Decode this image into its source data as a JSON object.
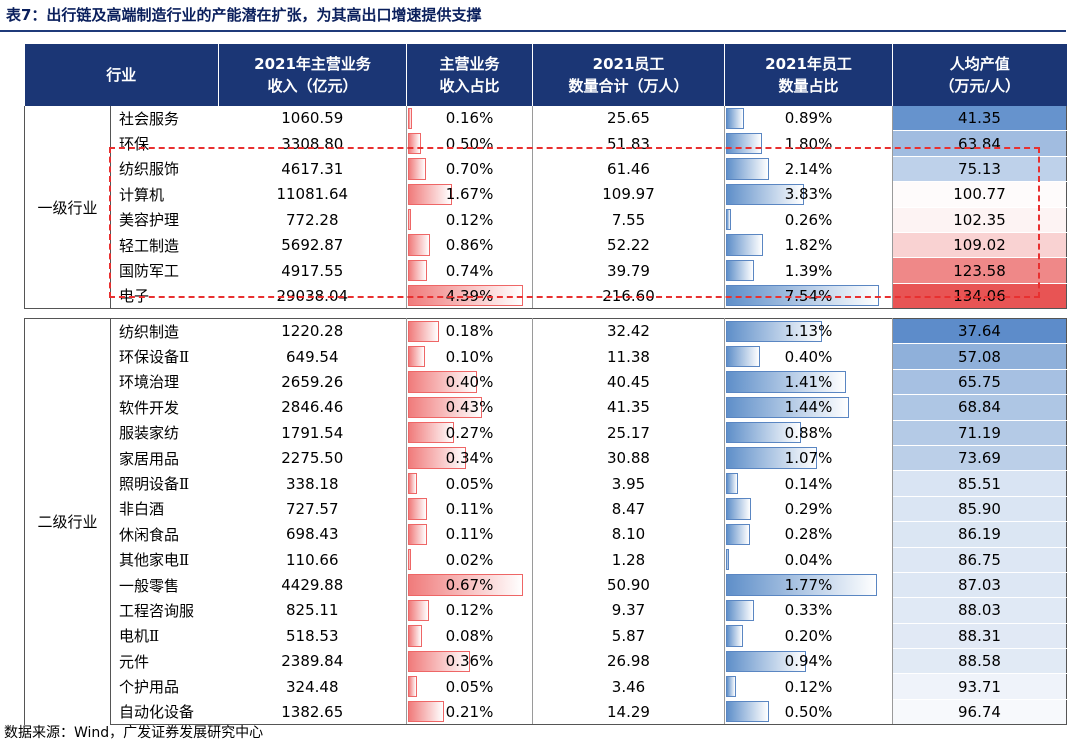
{
  "title": "表7：出行链及高端制造行业的产能潜在扩张，为其高出口增速提供支撑",
  "headers": {
    "industry": "行业",
    "revenue_1": "2021年主营业务",
    "revenue_2": "收入（亿元）",
    "revshare_1": "主营业务",
    "revshare_2": "收入占比",
    "emp_1": "2021员工",
    "emp_2": "数量合计（万人）",
    "empshare_1": "2021年员工",
    "empshare_2": "数量占比",
    "ppv_1": "人均产值",
    "ppv_2": "（万元/人）"
  },
  "colors": {
    "header": "#1b3675",
    "title": "#0a1f5c",
    "highlight": "#e83030"
  },
  "groups": [
    {
      "label": "一级行业",
      "rows": [
        {
          "name": "社会服务",
          "revenue": "1060.59",
          "rev_share": "0.16%",
          "rev_pct": 0.16,
          "employees": "25.65",
          "emp_share": "0.89%",
          "emp_pct": 0.89,
          "per_capita": "41.35",
          "pc": 41.35
        },
        {
          "name": "环保",
          "revenue": "3308.80",
          "rev_share": "0.50%",
          "rev_pct": 0.5,
          "employees": "51.83",
          "emp_share": "1.80%",
          "emp_pct": 1.8,
          "per_capita": "63.84",
          "pc": 63.84
        },
        {
          "name": "纺织服饰",
          "revenue": "4617.31",
          "rev_share": "0.70%",
          "rev_pct": 0.7,
          "employees": "61.46",
          "emp_share": "2.14%",
          "emp_pct": 2.14,
          "per_capita": "75.13",
          "pc": 75.13
        },
        {
          "name": "计算机",
          "revenue": "11081.64",
          "rev_share": "1.67%",
          "rev_pct": 1.67,
          "employees": "109.97",
          "emp_share": "3.83%",
          "emp_pct": 3.83,
          "per_capita": "100.77",
          "pc": 100.77
        },
        {
          "name": "美容护理",
          "revenue": "772.28",
          "rev_share": "0.12%",
          "rev_pct": 0.12,
          "employees": "7.55",
          "emp_share": "0.26%",
          "emp_pct": 0.26,
          "per_capita": "102.35",
          "pc": 102.35
        },
        {
          "name": "轻工制造",
          "revenue": "5692.87",
          "rev_share": "0.86%",
          "rev_pct": 0.86,
          "employees": "52.22",
          "emp_share": "1.82%",
          "emp_pct": 1.82,
          "per_capita": "109.02",
          "pc": 109.02
        },
        {
          "name": "国防军工",
          "revenue": "4917.55",
          "rev_share": "0.74%",
          "rev_pct": 0.74,
          "employees": "39.79",
          "emp_share": "1.39%",
          "emp_pct": 1.39,
          "per_capita": "123.58",
          "pc": 123.58
        },
        {
          "name": "电子",
          "revenue": "29038.04",
          "rev_share": "4.39%",
          "rev_pct": 4.39,
          "employees": "216.60",
          "emp_share": "7.54%",
          "emp_pct": 7.54,
          "per_capita": "134.06",
          "pc": 134.06
        }
      ]
    },
    {
      "label": "二级行业",
      "rows": [
        {
          "name": "纺织制造",
          "revenue": "1220.28",
          "rev_share": "0.18%",
          "rev_pct": 0.18,
          "employees": "32.42",
          "emp_share": "1.13%",
          "emp_pct": 1.13,
          "per_capita": "37.64",
          "pc": 37.64
        },
        {
          "name": "环保设备Ⅱ",
          "revenue": "649.54",
          "rev_share": "0.10%",
          "rev_pct": 0.1,
          "employees": "11.38",
          "emp_share": "0.40%",
          "emp_pct": 0.4,
          "per_capita": "57.08",
          "pc": 57.08
        },
        {
          "name": "环境治理",
          "revenue": "2659.26",
          "rev_share": "0.40%",
          "rev_pct": 0.4,
          "employees": "40.45",
          "emp_share": "1.41%",
          "emp_pct": 1.41,
          "per_capita": "65.75",
          "pc": 65.75
        },
        {
          "name": "软件开发",
          "revenue": "2846.46",
          "rev_share": "0.43%",
          "rev_pct": 0.43,
          "employees": "41.35",
          "emp_share": "1.44%",
          "emp_pct": 1.44,
          "per_capita": "68.84",
          "pc": 68.84
        },
        {
          "name": "服装家纺",
          "revenue": "1791.54",
          "rev_share": "0.27%",
          "rev_pct": 0.27,
          "employees": "25.17",
          "emp_share": "0.88%",
          "emp_pct": 0.88,
          "per_capita": "71.19",
          "pc": 71.19
        },
        {
          "name": "家居用品",
          "revenue": "2275.50",
          "rev_share": "0.34%",
          "rev_pct": 0.34,
          "employees": "30.88",
          "emp_share": "1.07%",
          "emp_pct": 1.07,
          "per_capita": "73.69",
          "pc": 73.69
        },
        {
          "name": "照明设备Ⅱ",
          "revenue": "338.18",
          "rev_share": "0.05%",
          "rev_pct": 0.05,
          "employees": "3.95",
          "emp_share": "0.14%",
          "emp_pct": 0.14,
          "per_capita": "85.51",
          "pc": 85.51
        },
        {
          "name": "非白酒",
          "revenue": "727.57",
          "rev_share": "0.11%",
          "rev_pct": 0.11,
          "employees": "8.47",
          "emp_share": "0.29%",
          "emp_pct": 0.29,
          "per_capita": "85.90",
          "pc": 85.9
        },
        {
          "name": "休闲食品",
          "revenue": "698.43",
          "rev_share": "0.11%",
          "rev_pct": 0.11,
          "employees": "8.10",
          "emp_share": "0.28%",
          "emp_pct": 0.28,
          "per_capita": "86.19",
          "pc": 86.19
        },
        {
          "name": "其他家电Ⅱ",
          "revenue": "110.66",
          "rev_share": "0.02%",
          "rev_pct": 0.02,
          "employees": "1.28",
          "emp_share": "0.04%",
          "emp_pct": 0.04,
          "per_capita": "86.75",
          "pc": 86.75
        },
        {
          "name": "一般零售",
          "revenue": "4429.88",
          "rev_share": "0.67%",
          "rev_pct": 0.67,
          "employees": "50.90",
          "emp_share": "1.77%",
          "emp_pct": 1.77,
          "per_capita": "87.03",
          "pc": 87.03
        },
        {
          "name": "工程咨询服",
          "revenue": "825.11",
          "rev_share": "0.12%",
          "rev_pct": 0.12,
          "employees": "9.37",
          "emp_share": "0.33%",
          "emp_pct": 0.33,
          "per_capita": "88.03",
          "pc": 88.03
        },
        {
          "name": "电机Ⅱ",
          "revenue": "518.53",
          "rev_share": "0.08%",
          "rev_pct": 0.08,
          "employees": "5.87",
          "emp_share": "0.20%",
          "emp_pct": 0.2,
          "per_capita": "88.31",
          "pc": 88.31
        },
        {
          "name": "元件",
          "revenue": "2389.84",
          "rev_share": "0.36%",
          "rev_pct": 0.36,
          "employees": "26.98",
          "emp_share": "0.94%",
          "emp_pct": 0.94,
          "per_capita": "88.58",
          "pc": 88.58
        },
        {
          "name": "个护用品",
          "revenue": "324.48",
          "rev_share": "0.05%",
          "rev_pct": 0.05,
          "employees": "3.46",
          "emp_share": "0.12%",
          "emp_pct": 0.12,
          "per_capita": "93.71",
          "pc": 93.71
        },
        {
          "name": "自动化设备",
          "revenue": "1382.65",
          "rev_share": "0.21%",
          "rev_pct": 0.21,
          "employees": "14.29",
          "emp_share": "0.50%",
          "emp_pct": 0.5,
          "per_capita": "96.74",
          "pc": 96.74
        }
      ]
    }
  ],
  "source": "数据来源：Wind，广发证券发展研究中心"
}
